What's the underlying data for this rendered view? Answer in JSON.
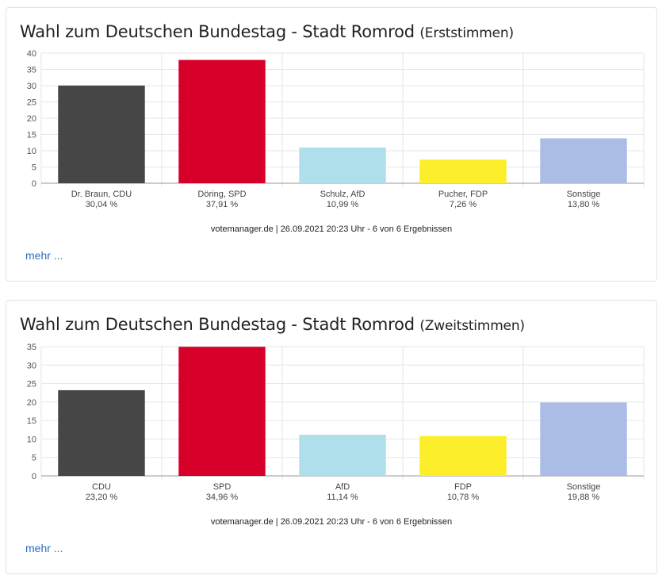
{
  "charts": [
    {
      "title": "Wahl zum Deutschen Bundestag - Stadt Romrod",
      "subtitle": "(Erststimmen)",
      "footer": "votemanager.de | 26.09.2021 20:23 Uhr - 6 von 6 Ergebnissen",
      "more_link": "mehr ..."
    },
    {
      "title": "Wahl zum Deutschen Bundestag - Stadt Romrod",
      "subtitle": "(Zweitstimmen)",
      "footer": "votemanager.de | 26.09.2021 20:23 Uhr - 6 von 6 Ergebnissen",
      "more_link": "mehr ..."
    }
  ],
  "chart_data": [
    {
      "type": "bar",
      "categories": [
        "Dr. Braun, CDU",
        "Döring, SPD",
        "Schulz, AfD",
        "Pucher, FDP",
        "Sonstige"
      ],
      "value_labels": [
        "30,04 %",
        "37,91 %",
        "10,99 %",
        "7,26 %",
        "13,80 %"
      ],
      "values": [
        30.04,
        37.91,
        10.99,
        7.26,
        13.8
      ],
      "colors": [
        "#464646",
        "#d6002a",
        "#b0dfec",
        "#fcee2a",
        "#abbde5"
      ],
      "ylim": [
        0,
        40
      ],
      "yticks": [
        "0",
        "5",
        "10",
        "15",
        "20",
        "25",
        "30",
        "35",
        "40"
      ],
      "grid": true
    },
    {
      "type": "bar",
      "categories": [
        "CDU",
        "SPD",
        "AfD",
        "FDP",
        "Sonstige"
      ],
      "value_labels": [
        "23,20 %",
        "34,96 %",
        "11,14 %",
        "10,78 %",
        "19,88 %"
      ],
      "values": [
        23.2,
        34.96,
        11.14,
        10.78,
        19.88
      ],
      "colors": [
        "#464646",
        "#d6002a",
        "#b0dfec",
        "#fcee2a",
        "#abbde5"
      ],
      "ylim": [
        0,
        35
      ],
      "yticks": [
        "0",
        "5",
        "10",
        "15",
        "20",
        "25",
        "30",
        "35"
      ],
      "grid": true
    }
  ]
}
